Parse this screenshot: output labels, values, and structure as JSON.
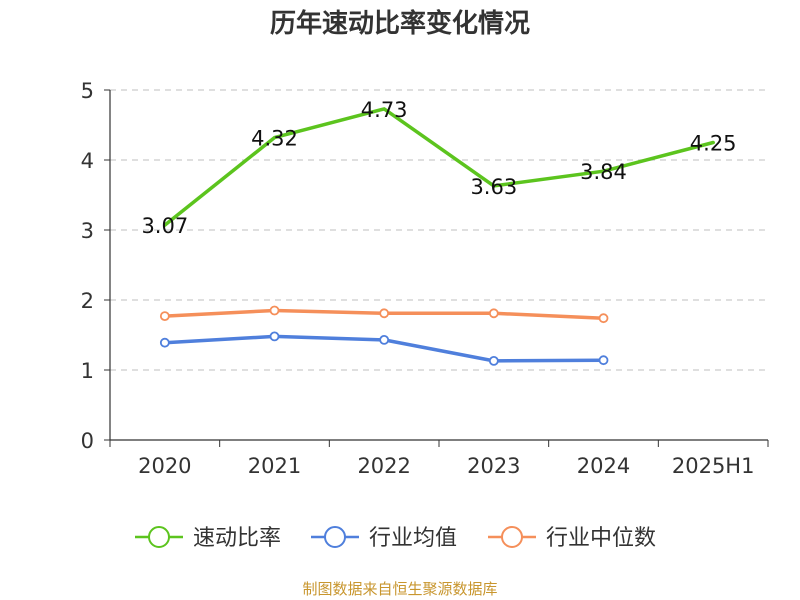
{
  "chart_data": {
    "type": "line",
    "title": "历年速动比率变化情况",
    "categories": [
      "2020",
      "2021",
      "2022",
      "2023",
      "2024",
      "2025H1"
    ],
    "ylim": [
      0,
      5
    ],
    "yticks": [
      0,
      1,
      2,
      3,
      4,
      5
    ],
    "grid": true,
    "legend_position": "bottom",
    "series": [
      {
        "name": "速动比率",
        "color": "#5cc41e",
        "values": [
          3.07,
          4.32,
          4.73,
          3.63,
          3.84,
          4.25
        ],
        "labels": [
          "3.07",
          "4.32",
          "4.73",
          "3.63",
          "3.84",
          "4.25"
        ],
        "show_markers": false
      },
      {
        "name": "行业均值",
        "color": "#4f7fdc",
        "values": [
          1.39,
          1.48,
          1.43,
          1.13,
          1.14,
          null
        ],
        "show_markers": true
      },
      {
        "name": "行业中位数",
        "color": "#f58f5a",
        "values": [
          1.77,
          1.85,
          1.81,
          1.81,
          1.74,
          null
        ],
        "show_markers": true
      }
    ]
  },
  "footer": {
    "source": "制图数据来自恒生聚源数据库"
  }
}
